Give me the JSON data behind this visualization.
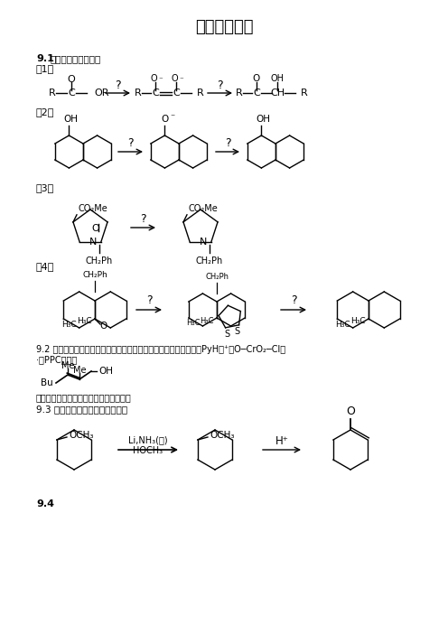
{
  "title": "氧化还原反应",
  "background_color": "#ffffff",
  "s91": "9.1 注明下列反应的试剂",
  "s1": "（1）",
  "s2": "（2）",
  "s3": "（3）",
  "s4": "（4）",
  "s92a": "9.2 三级醇不被氧化，但特殊结构的三级醇能够与氧化剂反应，用（PyH）⁺（O─CrO₂─Cl）",
  "s92b": "·（PPC）处理",
  "s92c": "时，有何结果，用反应式表示详细过程。",
  "s93": "9.3 写出下列两步反应的反应机理",
  "s94": "9.4"
}
